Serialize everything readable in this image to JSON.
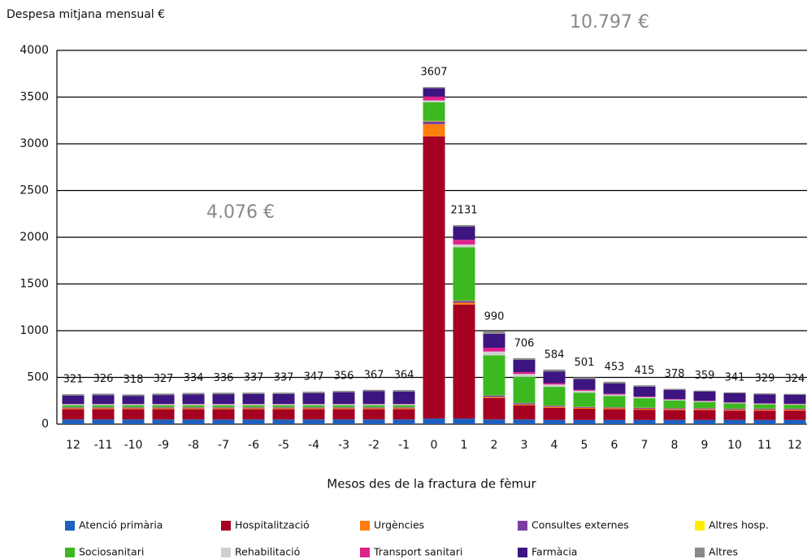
{
  "chart_data": {
    "type": "stacked_bar",
    "y_label": "Despesa mitjana mensual €",
    "x_label": "Mesos des de la fractura de fèmur",
    "annotations": [
      "4.076 €",
      "10.797 €"
    ],
    "categories": [
      "12",
      "-11",
      "-10",
      "-9",
      "-8",
      "-7",
      "-6",
      "-5",
      "-4",
      "-3",
      "-2",
      "-1",
      "0",
      "1",
      "2",
      "3",
      "4",
      "5",
      "6",
      "7",
      "8",
      "9",
      "10",
      "11",
      "12"
    ],
    "totals": [
      321,
      326,
      318,
      327,
      334,
      336,
      337,
      337,
      347,
      356,
      367,
      364,
      3607,
      2131,
      990,
      706,
      584,
      501,
      453,
      415,
      378,
      359,
      341,
      329,
      324
    ],
    "ylim": [
      0,
      4000
    ],
    "yticks": [
      0,
      500,
      1000,
      1500,
      2000,
      2500,
      3000,
      3500,
      4000
    ],
    "grid": true,
    "series": [
      {
        "name": "Atenció primària",
        "color": "#1f5fbf",
        "values": [
          50,
          50,
          50,
          50,
          50,
          50,
          50,
          50,
          50,
          50,
          50,
          50,
          60,
          60,
          50,
          50,
          45,
          45,
          45,
          45,
          45,
          45,
          45,
          45,
          45
        ]
      },
      {
        "name": "Hospitalització",
        "color": "#a50021",
        "values": [
          110,
          110,
          110,
          110,
          110,
          110,
          110,
          110,
          110,
          110,
          110,
          110,
          3020,
          1220,
          230,
          150,
          130,
          120,
          115,
          110,
          105,
          105,
          100,
          100,
          100
        ]
      },
      {
        "name": "Urgències",
        "color": "#ff7f0e",
        "values": [
          10,
          10,
          10,
          10,
          10,
          10,
          10,
          10,
          10,
          10,
          10,
          10,
          130,
          20,
          10,
          10,
          10,
          10,
          10,
          10,
          10,
          10,
          10,
          10,
          10
        ]
      },
      {
        "name": "Consultes externes",
        "color": "#7b3fa0",
        "values": [
          10,
          10,
          10,
          10,
          10,
          10,
          10,
          10,
          10,
          10,
          10,
          10,
          30,
          20,
          15,
          15,
          12,
          10,
          10,
          10,
          10,
          10,
          10,
          10,
          10
        ]
      },
      {
        "name": "Altres hosp.",
        "color": "#ffee00",
        "values": [
          2,
          2,
          2,
          2,
          2,
          2,
          2,
          2,
          2,
          2,
          2,
          2,
          5,
          3,
          2,
          2,
          2,
          2,
          2,
          2,
          2,
          2,
          2,
          2,
          2
        ]
      },
      {
        "name": "Sociosanitari",
        "color": "#3cb820",
        "values": [
          20,
          20,
          20,
          20,
          20,
          20,
          20,
          20,
          20,
          20,
          20,
          20,
          200,
          570,
          430,
          280,
          200,
          150,
          120,
          100,
          80,
          65,
          55,
          45,
          40
        ]
      },
      {
        "name": "Rehabilitació",
        "color": "#d0d0d0",
        "values": [
          10,
          10,
          10,
          10,
          10,
          10,
          10,
          10,
          10,
          10,
          10,
          10,
          20,
          30,
          40,
          30,
          25,
          20,
          15,
          12,
          10,
          8,
          8,
          7,
          7
        ]
      },
      {
        "name": "Transport sanitari",
        "color": "#e0218a",
        "values": [
          3,
          3,
          3,
          3,
          3,
          3,
          3,
          3,
          3,
          3,
          3,
          3,
          40,
          50,
          40,
          20,
          15,
          10,
          8,
          6,
          5,
          5,
          4,
          4,
          4
        ]
      },
      {
        "name": "Farmàcia",
        "color": "#3d1580",
        "values": [
          91,
          96,
          88,
          97,
          104,
          106,
          107,
          107,
          117,
          126,
          137,
          134,
          90,
          140,
          150,
          130,
          125,
          115,
          110,
          105,
          100,
          98,
          97,
          96,
          96
        ]
      },
      {
        "name": "Altres",
        "color": "#888888",
        "values": [
          15,
          15,
          15,
          15,
          15,
          15,
          15,
          15,
          15,
          15,
          15,
          15,
          12,
          18,
          23,
          19,
          20,
          19,
          18,
          15,
          11,
          11,
          10,
          10,
          10
        ]
      }
    ]
  }
}
